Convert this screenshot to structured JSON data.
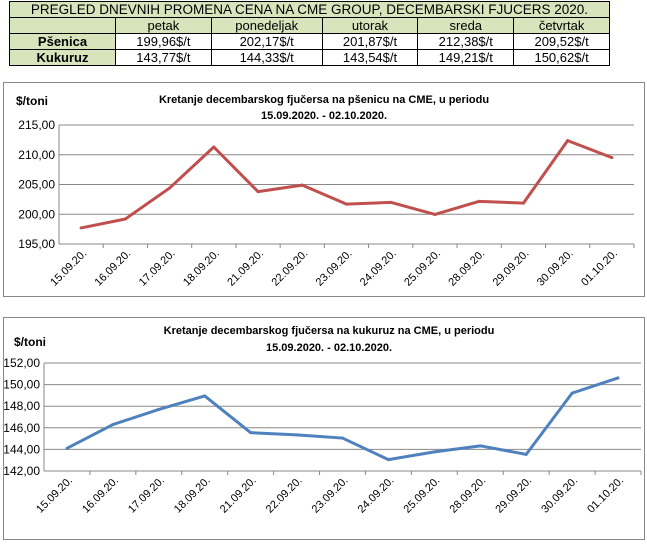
{
  "table": {
    "title": "PREGLED DNEVNIH PROMENA CENA NA CME GROUP, DECEMBARSKI  FJUCERS 2020.",
    "days": [
      "petak",
      "ponedeljak",
      "utorak",
      "sreda",
      "četvrtak"
    ],
    "rows": [
      {
        "label": "Pšenica",
        "values": [
          "199,96$/t",
          "202,17$/t",
          "201,87$/t",
          "212,38$/t",
          "209,52$/t"
        ]
      },
      {
        "label": "Kukuruz",
        "values": [
          "143,77$/t",
          "144,33$/t",
          "143,54$/t",
          "149,21$/t",
          "150,62$/t"
        ]
      }
    ]
  },
  "chart_data": [
    {
      "type": "line",
      "title": "Kretanje decembarskog fjučersa na  pšenicu na CME, u periodu",
      "subtitle": "15.09.2020. - 02.10.2020.",
      "ylabel": "$/toni",
      "color": "#c0504d",
      "categories": [
        "15.09.20.",
        "16.09.20.",
        "17.09.20.",
        "18.09.20.",
        "21.09.20.",
        "22.09.20.",
        "23.09.20.",
        "24.09.20.",
        "25.09.20.",
        "28.09.20.",
        "29.09.20.",
        "30.09.20.",
        "01.10.20."
      ],
      "values": [
        197.7,
        199.2,
        204.4,
        211.3,
        203.8,
        204.9,
        201.7,
        202.0,
        199.96,
        202.17,
        201.87,
        212.38,
        209.52
      ],
      "ylim": [
        195,
        215
      ],
      "yticks": [
        "195,00",
        "200,00",
        "205,00",
        "210,00",
        "215,00"
      ],
      "grid": true
    },
    {
      "type": "line",
      "title": "Kretanje decembarskog fjučersa na  kukuruz na CME, u periodu",
      "subtitle": "15.09.2020. - 02.10.2020.",
      "ylabel": "$/toni",
      "color": "#4f81bd",
      "categories": [
        "15.09.20.",
        "16.09.20.",
        "17.09.20.",
        "18.09.20.",
        "21.09.20.",
        "22.09.20.",
        "23.09.20.",
        "24.09.20.",
        "25.09.20.",
        "28.09.20.",
        "29.09.20.",
        "30.09.20.",
        "01.10.20."
      ],
      "values": [
        144.1,
        146.3,
        147.7,
        148.95,
        145.55,
        145.35,
        145.05,
        143.05,
        143.77,
        144.33,
        143.54,
        149.21,
        150.62
      ],
      "ylim": [
        142,
        152
      ],
      "yticks": [
        "142,00",
        "144,00",
        "146,00",
        "148,00",
        "150,00",
        "152,00"
      ],
      "grid": true
    }
  ]
}
